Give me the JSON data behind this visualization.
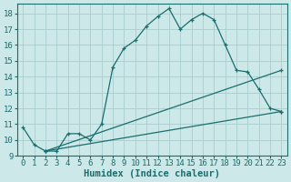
{
  "xlabel": "Humidex (Indice chaleur)",
  "background_color": "#cce8e8",
  "grid_color": "#aacccc",
  "line_color": "#1a6e6e",
  "xlim": [
    -0.5,
    23.5
  ],
  "ylim": [
    9.0,
    18.6
  ],
  "yticks": [
    9,
    10,
    11,
    12,
    13,
    14,
    15,
    16,
    17,
    18
  ],
  "xticks": [
    0,
    1,
    2,
    3,
    4,
    5,
    6,
    7,
    8,
    9,
    10,
    11,
    12,
    13,
    14,
    15,
    16,
    17,
    18,
    19,
    20,
    21,
    22,
    23
  ],
  "line1_x": [
    0,
    1,
    2,
    3,
    4,
    5,
    6,
    7,
    8,
    9,
    10,
    11,
    12,
    13,
    14,
    15,
    16,
    17,
    18,
    19,
    20,
    21,
    22,
    23
  ],
  "line1_y": [
    10.8,
    9.7,
    9.3,
    9.3,
    10.4,
    10.4,
    10.0,
    11.0,
    14.6,
    15.8,
    16.3,
    17.2,
    17.8,
    18.3,
    17.0,
    17.6,
    18.0,
    17.6,
    16.0,
    14.4,
    14.3,
    13.2,
    12.0,
    11.8
  ],
  "line2_x": [
    2,
    23
  ],
  "line2_y": [
    9.3,
    11.8
  ],
  "line3_x": [
    2,
    23
  ],
  "line3_y": [
    9.3,
    14.4
  ],
  "font_family": "monospace",
  "tick_fontsize": 6.5,
  "label_fontsize": 7.5
}
